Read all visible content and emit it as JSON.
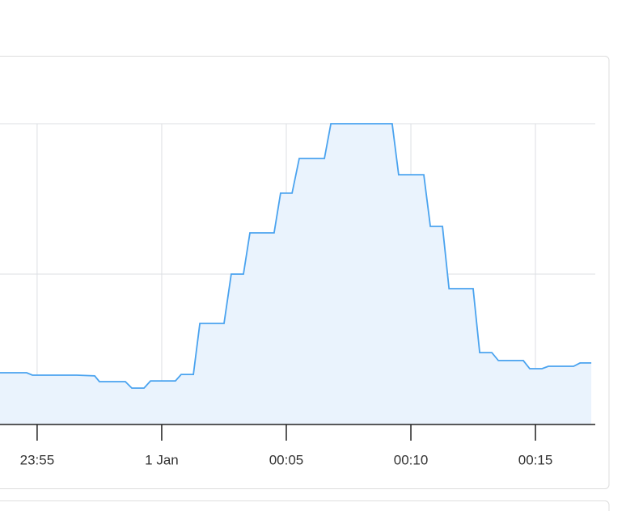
{
  "chart_data": {
    "type": "line",
    "color": "#4aa3ef",
    "fill": "#eaf3fd",
    "x": [
      -6.49,
      -5.42,
      -5.19,
      -3.41,
      -2.69,
      -2.5,
      -1.46,
      -1.2,
      -0.71,
      -0.45,
      0.55,
      0.78,
      1.27,
      1.53,
      2.5,
      2.79,
      3.28,
      3.54,
      4.51,
      4.77,
      5.23,
      5.52,
      6.53,
      6.79,
      9.25,
      9.51,
      10.52,
      10.78,
      11.27,
      11.53,
      12.5,
      12.76,
      13.25,
      13.51,
      14.51,
      14.77,
      15.26,
      15.52,
      16.53,
      16.79,
      17.24
    ],
    "values": [
      0.344,
      0.344,
      0.328,
      0.328,
      0.323,
      0.285,
      0.285,
      0.242,
      0.242,
      0.29,
      0.29,
      0.333,
      0.333,
      0.672,
      0.672,
      1.0,
      1.0,
      1.274,
      1.274,
      1.538,
      1.538,
      1.769,
      1.769,
      2.0,
      2.0,
      1.661,
      1.661,
      1.317,
      1.317,
      0.903,
      0.903,
      0.478,
      0.478,
      0.425,
      0.425,
      0.371,
      0.371,
      0.387,
      0.387,
      0.409,
      0.409
    ],
    "xlim": [
      -6.49,
      17.4
    ],
    "xticks": [
      {
        "value": -5,
        "label": "23:55"
      },
      {
        "value": 0,
        "label": "1 Jan"
      },
      {
        "value": 5,
        "label": "00:05"
      },
      {
        "value": 10,
        "label": "00:10"
      },
      {
        "value": 15,
        "label": "00:15"
      }
    ],
    "ylim": [
      0,
      2
    ],
    "yticks": [
      1,
      2
    ],
    "grid": true
  }
}
